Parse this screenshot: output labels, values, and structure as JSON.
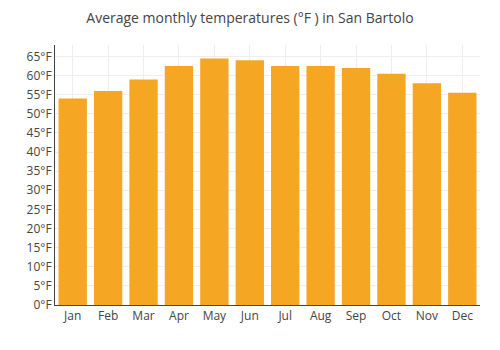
{
  "chart_data": {
    "type": "bar",
    "title": "Average monthly temperatures (°F ) in San Bartolo",
    "categories": [
      "Jan",
      "Feb",
      "Mar",
      "Apr",
      "May",
      "Jun",
      "Jul",
      "Aug",
      "Sep",
      "Oct",
      "Nov",
      "Dec"
    ],
    "values": [
      54,
      56,
      59,
      62.5,
      64.5,
      64,
      62.5,
      62.5,
      62,
      60.5,
      58,
      55.5
    ],
    "color": "#F5A623",
    "ylim": [
      0,
      68
    ],
    "yticks": [
      {
        "value": 0,
        "label": "0°F"
      },
      {
        "value": 5,
        "label": "5°F"
      },
      {
        "value": 10,
        "label": "10°F"
      },
      {
        "value": 15,
        "label": "15°F"
      },
      {
        "value": 20,
        "label": "20°F"
      },
      {
        "value": 25,
        "label": "25°F"
      },
      {
        "value": 30,
        "label": "30°F"
      },
      {
        "value": 35,
        "label": "35°F"
      },
      {
        "value": 40,
        "label": "40°F"
      },
      {
        "value": 45,
        "label": "45°F"
      },
      {
        "value": 50,
        "label": "50°F"
      },
      {
        "value": 55,
        "label": "55°F"
      },
      {
        "value": 60,
        "label": "60°F"
      },
      {
        "value": 65,
        "label": "65°F"
      }
    ],
    "grid": true
  }
}
